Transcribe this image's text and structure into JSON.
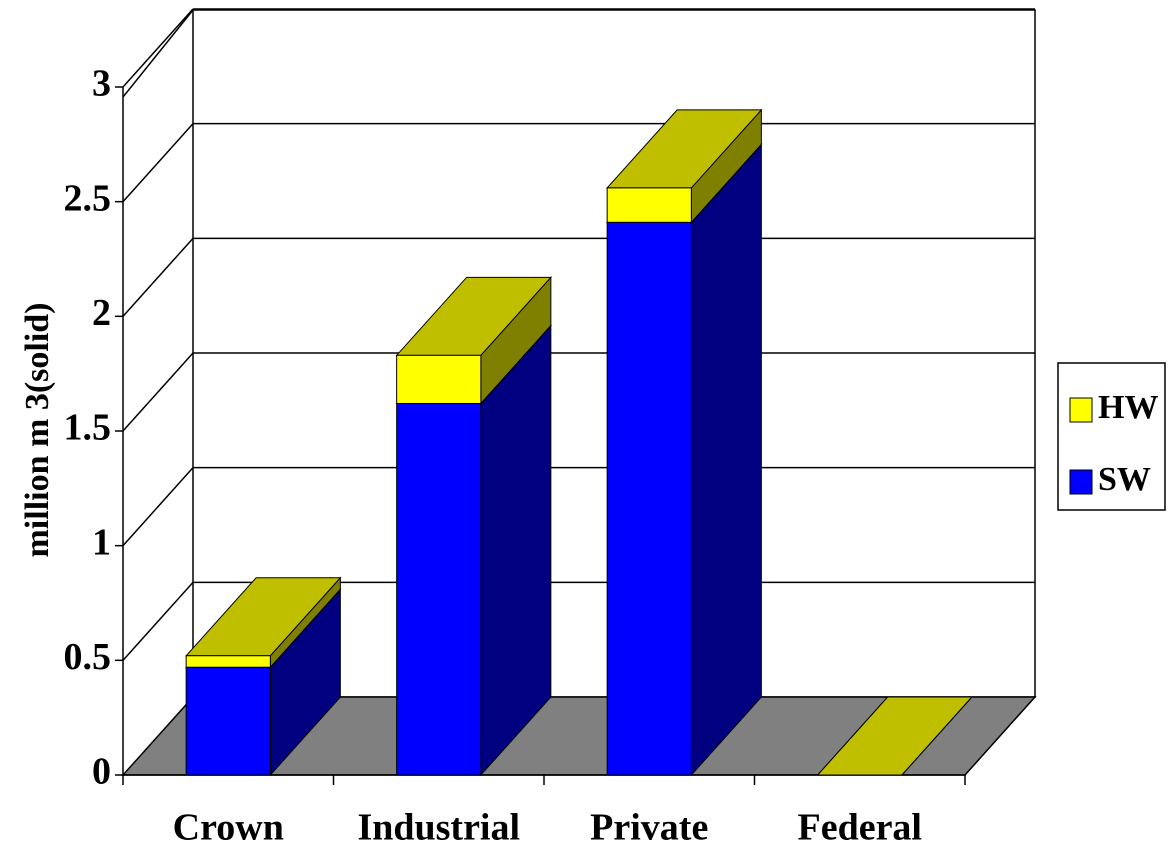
{
  "chart_data": {
    "type": "bar3d-stacked",
    "y_label": "million m 3(solid)",
    "categories": [
      "Crown",
      "Industrial",
      "Private",
      "Federal"
    ],
    "series": [
      {
        "name": "SW",
        "color": "#0000ff",
        "values": [
          0.47,
          1.62,
          2.41,
          0
        ]
      },
      {
        "name": "HW",
        "color": "#ffff00",
        "values": [
          0.05,
          0.21,
          0.15,
          0
        ]
      }
    ],
    "ylim": [
      0,
      3
    ],
    "yticks": [
      0,
      0.5,
      1,
      1.5,
      2,
      2.5,
      3
    ],
    "grid": true,
    "floor_color": "#808080",
    "legend": "right"
  }
}
